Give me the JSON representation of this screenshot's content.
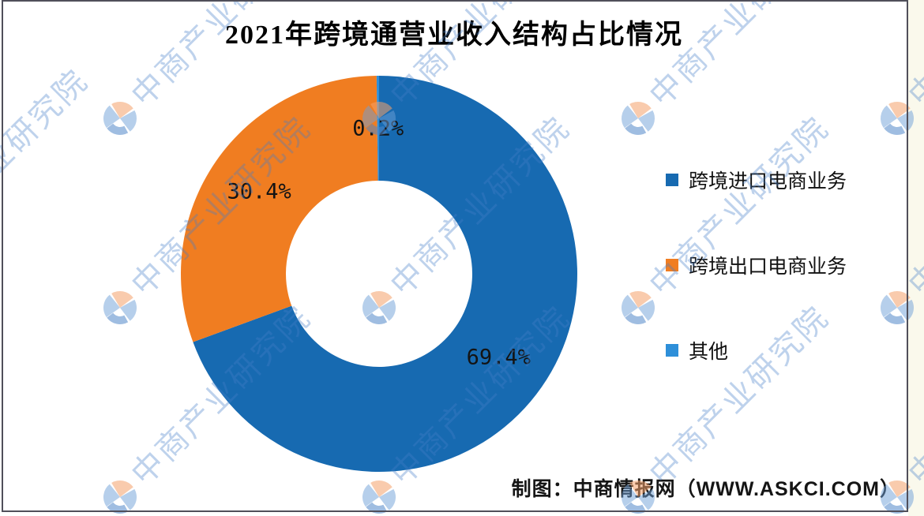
{
  "figure": {
    "title": "2021年跨境通营业收入结构占比情况",
    "credit": "制图：中商情报网（WWW.ASKCI.COM）"
  },
  "chart_data": {
    "type": "pie",
    "subtype": "donut",
    "title": "2021年跨境通营业收入结构占比情况",
    "start_angle_deg": 0,
    "direction": "clockwise",
    "legend_position": "right",
    "unit": "%",
    "series": [
      {
        "id": "import-ecommerce",
        "name": "跨境进口电商业务",
        "value": 69.4,
        "label": "69.4%",
        "color": "#176AB1"
      },
      {
        "id": "export-ecommerce",
        "name": "跨境出口电商业务",
        "value": 30.4,
        "label": "30.4%",
        "color": "#F07D21"
      },
      {
        "id": "other",
        "name": "其他",
        "value": 0.2,
        "label": "0.2%",
        "color": "#2E8FD9"
      }
    ]
  },
  "watermark": {
    "text": "中商产业研究院",
    "logo": "askci-compass-logo",
    "text_color": "rgba(70,125,200,0.35)",
    "logo_blue": "rgba(110,160,215,0.5)",
    "logo_salmon": "rgba(244,160,105,0.55)",
    "logo_crescent": "rgba(80,135,200,0.55)",
    "positions": [
      [
        152,
        150
      ],
      [
        480,
        150
      ],
      [
        808,
        150
      ],
      [
        1136,
        150
      ],
      [
        152,
        390
      ],
      [
        480,
        390
      ],
      [
        808,
        390
      ],
      [
        1136,
        390
      ],
      [
        152,
        630
      ],
      [
        480,
        630
      ],
      [
        808,
        630
      ],
      [
        1136,
        630
      ],
      [
        -130,
        330
      ]
    ]
  }
}
